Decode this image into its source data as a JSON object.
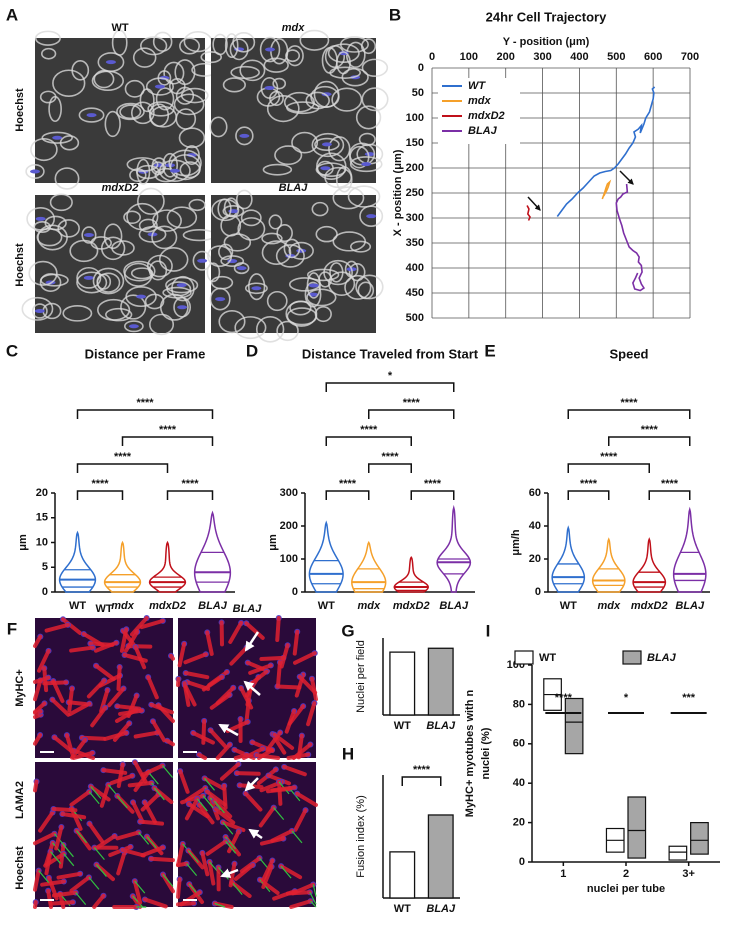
{
  "panel_labels": [
    "A",
    "B",
    "C",
    "D",
    "E",
    "F",
    "G",
    "H",
    "I"
  ],
  "panel_a": {
    "labels": [
      "WT",
      "mdx",
      "mdxD2",
      "BLAJ"
    ],
    "stain": "Hoechst"
  },
  "panel_f": {
    "columns": [
      "WT",
      "BLAJ"
    ],
    "stains": [
      "MyHC+",
      "LAMA2",
      "Hoechst"
    ]
  },
  "chart_data": [
    {
      "type": "line",
      "title": "24hr Cell Trajectory",
      "xlabel": "Y - position (μm)",
      "ylabel": "X - position (μm)",
      "xlim": [
        0,
        700
      ],
      "xticks": [
        0,
        100,
        200,
        300,
        400,
        500,
        600,
        700
      ],
      "ylim": [
        500,
        0
      ],
      "yticks": [
        0,
        50,
        100,
        150,
        200,
        250,
        300,
        350,
        400,
        450,
        500
      ],
      "grid": true,
      "legend": "upper left",
      "series": [
        {
          "name": "WT",
          "color": "#2f6fce",
          "x": [
            340,
            352,
            365,
            380,
            395,
            410,
            425,
            440,
            455,
            470,
            485,
            495,
            505,
            515,
            525,
            535,
            545,
            552,
            548,
            560,
            568,
            565,
            575,
            580,
            590,
            595,
            600,
            602,
            598,
            604
          ],
          "values": [
            297,
            285,
            272,
            262,
            250,
            240,
            228,
            216,
            210,
            207,
            205,
            200,
            192,
            182,
            172,
            160,
            150,
            138,
            128,
            122,
            115,
            130,
            112,
            100,
            88,
            75,
            62,
            50,
            42,
            38
          ]
        },
        {
          "name": "mdx",
          "color": "#f5a02a",
          "x": [
            462,
            468,
            472,
            476,
            482,
            478,
            474,
            470,
            466
          ],
          "values": [
            262,
            250,
            240,
            232,
            228,
            238,
            245,
            250,
            256
          ]
        },
        {
          "name": "mdxD2",
          "color": "#c0101a",
          "x": [
            258,
            263,
            260,
            266,
            262
          ],
          "values": [
            275,
            282,
            292,
            298,
            305
          ]
        },
        {
          "name": "BLAJ",
          "color": "#7b2fa6",
          "x": [
            528,
            530,
            518,
            512,
            505,
            500,
            502,
            508,
            515,
            520,
            528,
            535,
            545,
            555,
            562,
            560,
            568,
            570,
            562,
            568,
            575,
            565,
            550,
            545,
            552,
            558
          ],
          "values": [
            232,
            248,
            252,
            258,
            262,
            270,
            285,
            300,
            315,
            330,
            345,
            358,
            365,
            370,
            378,
            388,
            395,
            408,
            420,
            432,
            440,
            445,
            442,
            430,
            420,
            410
          ]
        }
      ]
    },
    {
      "type": "violin",
      "title": "Distance per Frame",
      "ylabel": "μm",
      "categories": [
        "WT",
        "mdx",
        "mdxD2",
        "BLAJ"
      ],
      "colors": [
        "#2f6fce",
        "#f5a02a",
        "#c0101a",
        "#7b2fa6"
      ],
      "ylim": [
        0,
        20
      ],
      "yticks": [
        0,
        5,
        10,
        15,
        20
      ],
      "max": [
        12,
        10,
        10,
        16
      ],
      "q3": [
        4.5,
        3.5,
        3,
        8
      ],
      "median": [
        2.5,
        2,
        2,
        4
      ],
      "q1": [
        1,
        1,
        1,
        2
      ],
      "significance": [
        {
          "pair": [
            0,
            1
          ],
          "label": "****"
        },
        {
          "pair": [
            2,
            3
          ],
          "label": "****"
        },
        {
          "pair": [
            0,
            2
          ],
          "label": "****"
        },
        {
          "pair": [
            1,
            3
          ],
          "label": "****"
        },
        {
          "pair": [
            0,
            3
          ],
          "label": "****"
        }
      ]
    },
    {
      "type": "violin",
      "title": "Distance Traveled from Start",
      "ylabel": "μm",
      "categories": [
        "WT",
        "mdx",
        "mdxD2",
        "BLAJ"
      ],
      "colors": [
        "#2f6fce",
        "#f5a02a",
        "#c0101a",
        "#7b2fa6"
      ],
      "ylim": [
        0,
        300
      ],
      "yticks": [
        0,
        100,
        200,
        300
      ],
      "max": [
        210,
        150,
        105,
        255
      ],
      "q3": [
        95,
        70,
        30,
        100
      ],
      "median": [
        55,
        30,
        15,
        90
      ],
      "q1": [
        25,
        10,
        5,
        55
      ],
      "significance": [
        {
          "pair": [
            0,
            1
          ],
          "label": "****"
        },
        {
          "pair": [
            2,
            3
          ],
          "label": "****"
        },
        {
          "pair": [
            1,
            2
          ],
          "label": "****"
        },
        {
          "pair": [
            0,
            2
          ],
          "label": "****"
        },
        {
          "pair": [
            1,
            3
          ],
          "label": "****"
        },
        {
          "pair": [
            0,
            3
          ],
          "label": "*"
        }
      ]
    },
    {
      "type": "violin",
      "title": "Speed",
      "ylabel": "μm/h",
      "categories": [
        "WT",
        "mdx",
        "mdxD2",
        "BLAJ"
      ],
      "colors": [
        "#2f6fce",
        "#f5a02a",
        "#c0101a",
        "#7b2fa6"
      ],
      "ylim": [
        0,
        60
      ],
      "yticks": [
        0,
        20,
        40,
        60
      ],
      "max": [
        39,
        32,
        32,
        50
      ],
      "q3": [
        17,
        14,
        12,
        24
      ],
      "median": [
        9,
        7,
        6,
        11
      ],
      "q1": [
        5,
        4,
        3,
        7
      ],
      "significance": [
        {
          "pair": [
            0,
            1
          ],
          "label": "****"
        },
        {
          "pair": [
            2,
            3
          ],
          "label": "****"
        },
        {
          "pair": [
            0,
            2
          ],
          "label": "****"
        },
        {
          "pair": [
            1,
            3
          ],
          "label": "****"
        },
        {
          "pair": [
            0,
            3
          ],
          "label": "****"
        }
      ]
    },
    {
      "type": "bar",
      "ylabel": "Nuclei per field",
      "categories": [
        "WT",
        "BLAJ"
      ],
      "values": [
        490,
        520
      ],
      "colors": [
        "#ffffff",
        "#a6a6a6"
      ],
      "ylim": [
        0,
        600
      ]
    },
    {
      "type": "bar",
      "ylabel": "Fusion index (%)",
      "categories": [
        "WT",
        "BLAJ"
      ],
      "values": [
        30,
        54
      ],
      "colors": [
        "#ffffff",
        "#a6a6a6"
      ],
      "ylim": [
        0,
        80
      ],
      "significance": [
        {
          "pair": [
            0,
            1
          ],
          "label": "****"
        }
      ]
    },
    {
      "type": "floating_bar",
      "ylabel": [
        "MyHC+ myotubes with n",
        "nuclei (%)"
      ],
      "xlabel": "nuclei per tube",
      "categories": [
        "1",
        "2",
        "3+"
      ],
      "ylim": [
        0,
        100
      ],
      "yticks": [
        0,
        20,
        40,
        60,
        80,
        100
      ],
      "series": [
        {
          "name": "WT",
          "color": "#ffffff",
          "low": [
            77,
            5,
            1
          ],
          "values": [
            85,
            11,
            5
          ],
          "high": [
            93,
            17,
            8
          ]
        },
        {
          "name": "BLAJ",
          "color": "#a6a6a6",
          "low": [
            55,
            2,
            4
          ],
          "values": [
            71,
            16,
            11
          ],
          "high": [
            83,
            33,
            20
          ]
        }
      ],
      "significance": [
        "****",
        "*",
        "***"
      ]
    }
  ]
}
